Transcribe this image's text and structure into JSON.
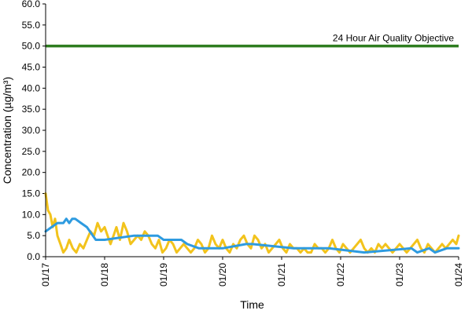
{
  "chart_data": {
    "type": "line",
    "title": "",
    "xlabel": "Time",
    "ylabel": "Concentration (µg/m³)",
    "ylim": [
      0,
      60
    ],
    "y_ticks": [
      "0.0",
      "5.0",
      "10.0",
      "15.0",
      "20.0",
      "25.0",
      "30.0",
      "35.0",
      "40.0",
      "45.0",
      "50.0",
      "55.0",
      "60.0"
    ],
    "x_tick_labels": [
      "01/17",
      "01/18",
      "01/19",
      "01/20",
      "01/21",
      "01/22",
      "01/23",
      "01/24"
    ],
    "grid": false,
    "legend": "none",
    "objective": {
      "value": 50,
      "label": "24 Hour Air Quality Objective",
      "color": "#2e7d1f"
    },
    "series": [
      {
        "color": "#f2c31c",
        "x_days": [
          0,
          0.04,
          0.08,
          0.12,
          0.16,
          0.2,
          0.25,
          0.3,
          0.35,
          0.4,
          0.46,
          0.52,
          0.58,
          0.64,
          0.7,
          0.76,
          0.82,
          0.88,
          0.94,
          1.0,
          1.05,
          1.1,
          1.15,
          1.2,
          1.26,
          1.32,
          1.38,
          1.44,
          1.5,
          1.56,
          1.62,
          1.68,
          1.74,
          1.8,
          1.86,
          1.92,
          1.98,
          2.04,
          2.1,
          2.16,
          2.22,
          2.28,
          2.34,
          2.4,
          2.46,
          2.52,
          2.58,
          2.64,
          2.7,
          2.76,
          2.82,
          2.88,
          2.94,
          3.0,
          3.06,
          3.12,
          3.18,
          3.24,
          3.3,
          3.36,
          3.42,
          3.48,
          3.54,
          3.6,
          3.66,
          3.72,
          3.78,
          3.84,
          3.9,
          3.96,
          4.02,
          4.08,
          4.14,
          4.2,
          4.26,
          4.32,
          4.38,
          4.44,
          4.5,
          4.56,
          4.62,
          4.68,
          4.74,
          4.8,
          4.86,
          4.92,
          4.98,
          5.04,
          5.1,
          5.16,
          5.22,
          5.28,
          5.34,
          5.4,
          5.46,
          5.52,
          5.58,
          5.64,
          5.7,
          5.76,
          5.82,
          5.88,
          5.94,
          6.0,
          6.06,
          6.12,
          6.18,
          6.24,
          6.3,
          6.36,
          6.42,
          6.48,
          6.54,
          6.6,
          6.66,
          6.72,
          6.78,
          6.84,
          6.9,
          6.96,
          7.0
        ],
        "values": [
          15,
          11,
          10,
          7,
          9,
          5,
          3,
          1,
          2,
          4,
          2,
          1,
          3,
          2,
          4,
          6,
          5,
          8,
          6,
          7,
          5,
          3,
          5,
          7,
          4,
          8,
          6,
          3,
          4,
          5,
          4,
          6,
          5,
          3,
          2,
          4,
          1,
          2,
          4,
          3,
          1,
          2,
          3,
          2,
          1,
          2,
          4,
          3,
          1,
          2,
          5,
          3,
          2,
          4,
          2,
          1,
          3,
          2,
          4,
          5,
          3,
          2,
          5,
          4,
          2,
          3,
          1,
          2,
          3,
          4,
          2,
          1,
          3,
          2,
          2,
          1,
          2,
          1,
          1,
          3,
          2,
          2,
          1,
          2,
          4,
          2,
          1,
          3,
          2,
          1,
          2,
          3,
          4,
          2,
          1,
          2,
          1,
          3,
          2,
          3,
          2,
          1,
          2,
          3,
          2,
          1,
          2,
          3,
          4,
          2,
          1,
          3,
          2,
          1,
          2,
          3,
          2,
          3,
          4,
          3,
          5
        ]
      },
      {
        "color": "#2e9be0",
        "x_days": [
          0,
          0.1,
          0.2,
          0.3,
          0.35,
          0.4,
          0.45,
          0.5,
          0.6,
          0.7,
          0.8,
          0.85,
          0.9,
          1.0,
          1.5,
          1.9,
          2.0,
          2.3,
          2.4,
          2.6,
          3.0,
          3.4,
          3.5,
          4.2,
          4.3,
          4.8,
          5.4,
          6.2,
          6.3,
          6.5,
          6.6,
          6.8,
          7.0
        ],
        "values": [
          6,
          7,
          8,
          8,
          9,
          8,
          9,
          9,
          8,
          7,
          5,
          4,
          4,
          4,
          5,
          5,
          4,
          4,
          3,
          2,
          2,
          3,
          3,
          2,
          2,
          2,
          1,
          2,
          1,
          2,
          1,
          2,
          2
        ]
      }
    ]
  }
}
